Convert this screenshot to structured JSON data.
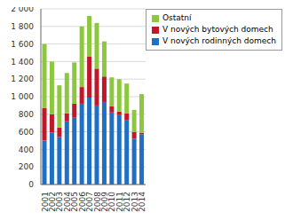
{
  "chart_data": {
    "type": "bar",
    "stacked": true,
    "grid": true,
    "legend": "top-right",
    "categories": [
      "2001",
      "2002",
      "2003",
      "2004",
      "2005",
      "2006",
      "2007",
      "2008",
      "2009",
      "2010",
      "2011",
      "2012",
      "2013",
      "2014"
    ],
    "series": [
      {
        "name": "V nových rodinných domech",
        "color": "#1f6fc4",
        "values": [
          500,
          590,
          540,
          720,
          760,
          920,
          990,
          900,
          940,
          820,
          790,
          730,
          520,
          570
        ]
      },
      {
        "name": "V nových bytových domech",
        "color": "#c0182a",
        "values": [
          370,
          210,
          110,
          90,
          160,
          190,
          470,
          420,
          290,
          70,
          40,
          80,
          80,
          20
        ]
      },
      {
        "name": "Ostatní",
        "color": "#8dc63f",
        "values": [
          730,
          600,
          480,
          460,
          470,
          690,
          460,
          520,
          400,
          330,
          370,
          340,
          250,
          440
        ]
      }
    ],
    "ylim": [
      0,
      2000
    ],
    "yticks": [
      0,
      200,
      400,
      600,
      800,
      {
        "value": 1000,
        "label": "1 000"
      },
      {
        "value": 1200,
        "label": "1 200"
      },
      {
        "value": 1400,
        "label": "1 400"
      },
      {
        "value": 1600,
        "label": "1 600"
      },
      {
        "value": 1800,
        "label": "1 800"
      },
      {
        "value": 2000,
        "label": "2 000"
      }
    ]
  }
}
